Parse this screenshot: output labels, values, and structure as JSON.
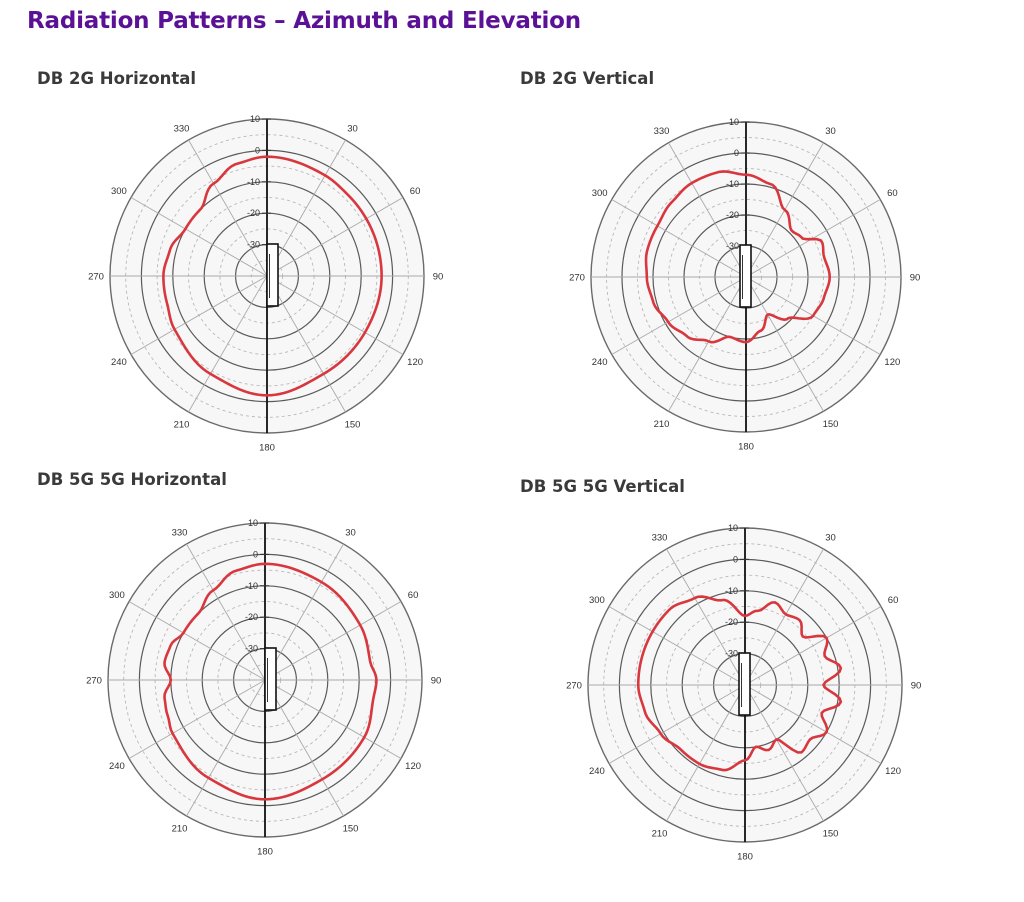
{
  "page_title": "Radiation Patterns – Azimuth and Elevation",
  "colors": {
    "title": "#5b1196",
    "pattern": "#d8373e",
    "axis": "#111111"
  },
  "chart_data": [
    {
      "type": "polar-line",
      "title": "DB 2G Horizontal",
      "angle_labels": [
        "30",
        "60",
        "90",
        "120",
        "150",
        "180",
        "210",
        "240",
        "270",
        "300",
        "330"
      ],
      "radial_labels": [
        "10",
        "0",
        "-10",
        "-20",
        "-30"
      ],
      "rlim": [
        -40,
        10
      ],
      "angles_deg": [
        0,
        30,
        45,
        60,
        90,
        120,
        135,
        150,
        180,
        210,
        240,
        255,
        270,
        285,
        300,
        315,
        330,
        345
      ],
      "gain_db": [
        -2,
        -3,
        -3.5,
        -3.5,
        -3.5,
        -4,
        -4,
        -4,
        -2,
        -4,
        -6,
        -7,
        -7,
        -8,
        -10,
        -10,
        -6,
        -3
      ]
    },
    {
      "type": "polar-line",
      "title": "DB 2G Vertical",
      "angle_labels": [
        "30",
        "60",
        "90",
        "120",
        "150",
        "180",
        "210",
        "240",
        "270",
        "300",
        "330"
      ],
      "radial_labels": [
        "10",
        "0",
        "-10",
        "-20",
        "-30"
      ],
      "rlim": [
        -40,
        10
      ],
      "angles_deg": [
        0,
        15,
        30,
        45,
        55,
        65,
        75,
        90,
        105,
        120,
        135,
        150,
        165,
        180,
        195,
        210,
        225,
        240,
        255,
        270,
        285,
        300,
        315,
        330,
        345
      ],
      "gain_db": [
        -7,
        -9,
        -15,
        -19,
        -18,
        -13,
        -14,
        -13,
        -14,
        -15,
        -21,
        -26,
        -22,
        -19,
        -20,
        -16,
        -13,
        -11,
        -9,
        -8,
        -7,
        -7,
        -6,
        -5,
        -5
      ]
    },
    {
      "type": "polar-line",
      "title": "DB 5G 5G Horizontal",
      "angle_labels": [
        "30",
        "60",
        "90",
        "120",
        "150",
        "180",
        "210",
        "240",
        "270",
        "300",
        "330"
      ],
      "radial_labels": [
        "10",
        "0",
        "-10",
        "-20",
        "-30"
      ],
      "rlim": [
        -40,
        10
      ],
      "angles_deg": [
        0,
        30,
        60,
        80,
        90,
        100,
        120,
        150,
        180,
        210,
        240,
        250,
        260,
        270,
        280,
        290,
        300,
        315,
        330,
        345
      ],
      "gain_db": [
        -3,
        -4,
        -5,
        -6,
        -4.5,
        -5,
        -3.5,
        -3.5,
        -2,
        -4,
        -6,
        -7,
        -7.5,
        -10,
        -7.5,
        -8,
        -10,
        -10,
        -7,
        -4
      ]
    },
    {
      "type": "polar-line",
      "title": "DB 5G 5G Vertical",
      "angle_labels": [
        "30",
        "60",
        "90",
        "120",
        "150",
        "180",
        "210",
        "240",
        "270",
        "300",
        "330"
      ],
      "radial_labels": [
        "10",
        "0",
        "-10",
        "-20",
        "-30"
      ],
      "rlim": [
        -40,
        10
      ],
      "angles_deg": [
        0,
        10,
        20,
        30,
        40,
        50,
        60,
        70,
        80,
        90,
        100,
        110,
        120,
        130,
        140,
        150,
        160,
        170,
        180,
        195,
        210,
        225,
        240,
        255,
        270,
        285,
        300,
        315,
        330,
        345
      ],
      "gain_db": [
        -18,
        -16,
        -12,
        -14,
        -13,
        -16,
        -10,
        -13,
        -9,
        -15,
        -9,
        -14,
        -10,
        -13,
        -12,
        -20,
        -18,
        -20,
        -16,
        -12,
        -11,
        -11,
        -9,
        -7,
        -6,
        -6,
        -6,
        -6,
        -8,
        -12
      ]
    }
  ]
}
